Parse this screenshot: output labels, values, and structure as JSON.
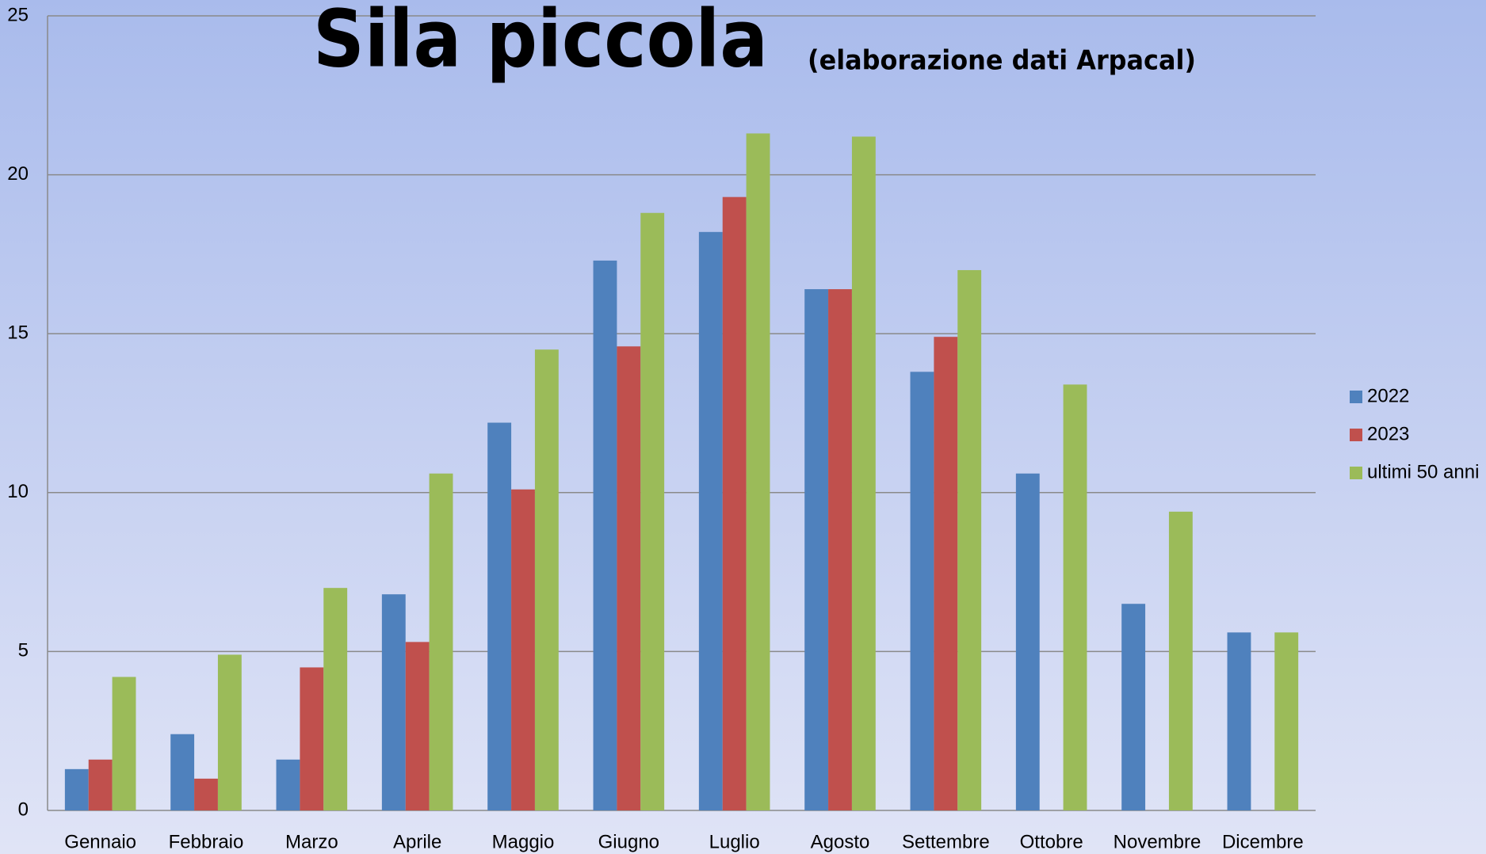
{
  "chart_data": {
    "type": "bar",
    "title": "Sila piccola",
    "subtitle": "(elaborazione dati Arpacal)",
    "categories": [
      "Gennaio",
      "Febbraio",
      "Marzo",
      "Aprile",
      "Maggio",
      "Giugno",
      "Luglio",
      "Agosto",
      "Settembre",
      "Ottobre",
      "Novembre",
      "Dicembre"
    ],
    "series": [
      {
        "name": "2022",
        "color": "#4f81bd",
        "values": [
          1.3,
          2.4,
          1.6,
          6.8,
          12.2,
          17.3,
          18.2,
          16.4,
          13.8,
          10.6,
          6.5,
          5.6
        ]
      },
      {
        "name": "2023",
        "color": "#c0504d",
        "values": [
          1.6,
          1.0,
          4.5,
          5.3,
          10.1,
          14.6,
          19.3,
          16.4,
          14.9,
          null,
          null,
          null
        ]
      },
      {
        "name": "ultimi 50 anni",
        "color": "#9bbb59",
        "values": [
          4.2,
          4.9,
          7.0,
          10.6,
          14.5,
          18.8,
          21.3,
          21.2,
          17.0,
          13.4,
          9.4,
          5.6
        ]
      }
    ],
    "ylim": [
      0,
      25
    ],
    "yticks": [
      0,
      5,
      10,
      15,
      20,
      25
    ],
    "grid": true,
    "legend": "right"
  }
}
